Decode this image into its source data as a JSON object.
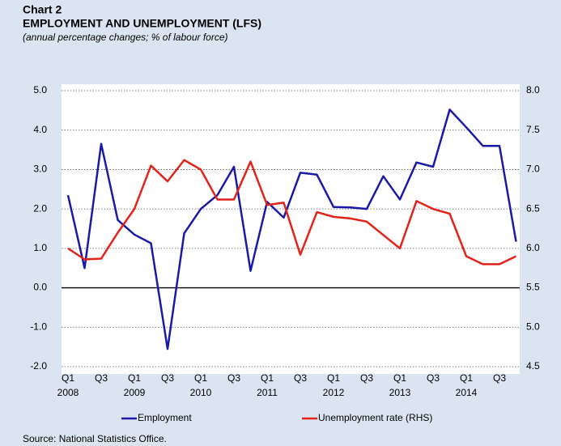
{
  "chart_data": {
    "type": "line",
    "chart_label": "Chart 2",
    "title": "EMPLOYMENT AND UNEMPLOYMENT (LFS)",
    "subtitle": "(annual percentage changes; % of labour force)",
    "source": "Source: National Statistics Office.",
    "categories": [
      "Q1",
      null,
      "Q3",
      null,
      "Q1",
      null,
      "Q3",
      null,
      "Q1",
      null,
      "Q3",
      null,
      "Q1",
      null,
      "Q3",
      null,
      "Q1",
      null,
      "Q3",
      null,
      "Q1",
      null,
      "Q3",
      null,
      "Q1",
      null,
      "Q3",
      null
    ],
    "years": [
      "2008",
      "2009",
      "2010",
      "2011",
      "2012",
      "2013",
      "2014"
    ],
    "series": [
      {
        "name": "Employment",
        "color": "#1a1aa8",
        "axis": "y",
        "values": [
          2.35,
          0.5,
          3.65,
          1.72,
          1.35,
          1.13,
          -1.55,
          1.38,
          2.0,
          2.35,
          3.07,
          0.43,
          2.18,
          1.78,
          2.92,
          2.87,
          2.05,
          2.04,
          2.0,
          2.83,
          2.24,
          3.18,
          3.07,
          4.52,
          4.07,
          3.6,
          3.6,
          1.17
        ]
      },
      {
        "name": "Unemployment rate (RHS)",
        "color": "#e2231a",
        "axis": "y2",
        "values": [
          6.0,
          5.86,
          5.87,
          6.2,
          6.5,
          7.05,
          6.85,
          7.12,
          7.0,
          6.62,
          6.62,
          7.1,
          6.55,
          6.58,
          5.92,
          6.46,
          6.4,
          6.38,
          6.34,
          6.17,
          6.0,
          6.6,
          6.5,
          6.44,
          5.9,
          5.8,
          5.8,
          5.9
        ]
      }
    ],
    "ylim": [
      -2,
      5
    ],
    "yticks": [
      {
        "value": 5,
        "label": "5.0"
      },
      {
        "value": 4,
        "label": "4.0"
      },
      {
        "value": 3,
        "label": "3.0"
      },
      {
        "value": 2,
        "label": "2.0"
      },
      {
        "value": 1,
        "label": "1.0"
      },
      {
        "value": 0,
        "label": "0.0"
      },
      {
        "value": -1,
        "label": "-1.0"
      },
      {
        "value": -2,
        "label": "-2.0"
      }
    ],
    "y2lim": [
      4.5,
      8
    ],
    "y2ticks": [
      {
        "value": 8,
        "label": "8.0"
      },
      {
        "value": 7.5,
        "label": "7.5"
      },
      {
        "value": 7,
        "label": "7.0"
      },
      {
        "value": 6.5,
        "label": "6.5"
      },
      {
        "value": 6,
        "label": "6.0"
      },
      {
        "value": 5.5,
        "label": "5.5"
      },
      {
        "value": 5,
        "label": "5.0"
      },
      {
        "value": 4.5,
        "label": "4.5"
      }
    ],
    "grid": true,
    "legend": "bottom"
  }
}
